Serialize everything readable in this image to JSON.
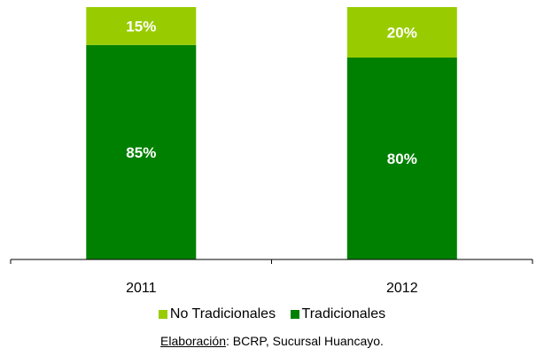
{
  "chart_data": {
    "type": "bar",
    "stacked": true,
    "categories": [
      "2011",
      "2012"
    ],
    "series": [
      {
        "name": "Tradicionales",
        "values": [
          85,
          80
        ],
        "labels": [
          "85%",
          "80%"
        ],
        "color": "#008000"
      },
      {
        "name": "No Tradicionales",
        "values": [
          15,
          20
        ],
        "labels": [
          "15%",
          "20%"
        ],
        "color": "#99CC00"
      }
    ],
    "ylim": [
      0,
      100
    ],
    "legend": [
      "No Tradicionales",
      "Tradicionales"
    ],
    "legend_placement": "bottom"
  },
  "source": {
    "label": "Elaboración",
    "text": ": BCRP, Sucursal Huancayo."
  }
}
